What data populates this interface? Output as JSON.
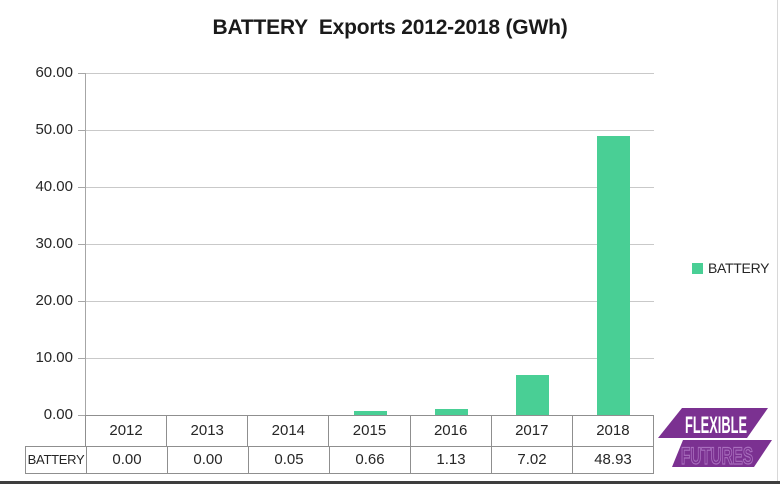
{
  "chart_data": {
    "type": "bar",
    "title": "BATTERY  Exports 2012-2018 (GWh)",
    "categories": [
      "2012",
      "2013",
      "2014",
      "2015",
      "2016",
      "2017",
      "2018"
    ],
    "series": [
      {
        "name": "BATTERY",
        "values": [
          0.0,
          0.0,
          0.05,
          0.66,
          1.13,
          7.02,
          48.93
        ],
        "color": "#49cf95"
      }
    ],
    "value_labels": [
      "0.00",
      "0.00",
      "0.05",
      "0.66",
      "1.13",
      "7.02",
      "48.93"
    ],
    "xlabel": "",
    "ylabel": "",
    "ylim": [
      0,
      60
    ],
    "ytick_interval": 10,
    "ytick_labels": [
      "60.00",
      "50.00",
      "40.00",
      "30.00",
      "20.00",
      "10.00",
      "0.00"
    ],
    "grid": true,
    "legend_position": "right",
    "data_table_row_header": "BATTERY"
  },
  "legend": {
    "label": "BATTERY",
    "swatch_color": "#49cf95"
  },
  "table": {
    "row_header": "BATTERY"
  },
  "logo": {
    "line1": "FLEXIBLE",
    "line2": "FUTURES",
    "color": "#7b3191",
    "outline_color": "#a96fbe",
    "text_color": "#ffffff"
  },
  "colors": {
    "bar": "#49cf95",
    "gridline": "#c9c9c9",
    "axis": "#a6a6a6",
    "table_border": "#8f8f8f",
    "text": "#262626",
    "bottom_rule": "#3e3e3e"
  }
}
